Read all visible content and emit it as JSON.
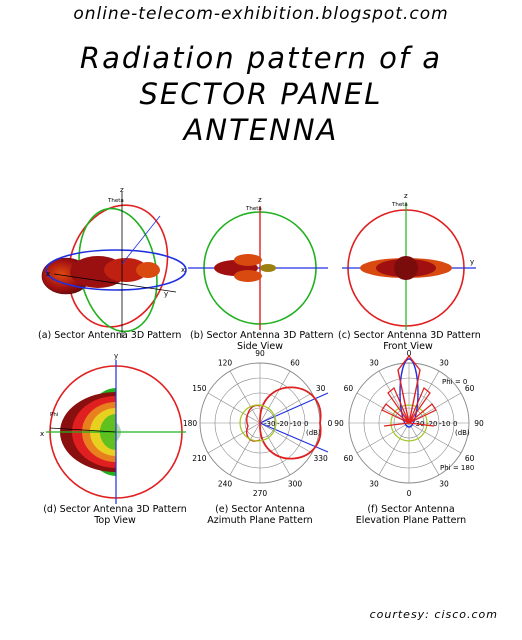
{
  "header": {
    "site": "online-telecom-exhibition.blogspot.com",
    "title_lines": [
      "Radiation pattern of a",
      "SECTOR PANEL",
      "ANTENNA"
    ]
  },
  "axes": {
    "x": "x",
    "y": "y",
    "z": "z",
    "theta": "Theta",
    "phi": "Phi"
  },
  "panels": {
    "a": {
      "caption": [
        "(a) Sector Antenna 3D Pattern"
      ]
    },
    "b": {
      "caption": [
        "(b) Sector Antenna 3D Pattern",
        "Side View"
      ]
    },
    "c": {
      "caption": [
        "(c) Sector Antenna 3D Pattern",
        "Front View"
      ]
    },
    "d": {
      "caption": [
        "(d) Sector Antenna 3D Pattern",
        "Top View"
      ]
    },
    "e": {
      "caption": [
        "(e) Sector Antenna",
        "Azimuth Plane Pattern"
      ],
      "angles": [
        "90",
        "60",
        "30",
        "0",
        "330",
        "300",
        "270",
        "240",
        "210",
        "180",
        "150",
        "120"
      ],
      "rings": [
        "-30",
        "-20",
        "-10",
        "0",
        "(dB)"
      ]
    },
    "f": {
      "caption": [
        "(f) Sector Antenna",
        "Elevation Plane Pattern"
      ],
      "angles": [
        "0",
        "30",
        "60",
        "90",
        "60",
        "30",
        "0",
        "30",
        "60",
        "90",
        "60",
        "30"
      ],
      "rings": [
        "-30",
        "-20",
        "-10",
        "0",
        "(dB)"
      ],
      "phi0": "Phi = 0",
      "phi180": "Phi = 180"
    }
  },
  "footer": {
    "courtesy": "courtesy: cisco.com"
  },
  "colors": {
    "red": "#e02020",
    "green": "#20b020",
    "blue": "#2030e0",
    "lobe_dark": "#8a0f0f",
    "lobe_light": "#d04010"
  }
}
